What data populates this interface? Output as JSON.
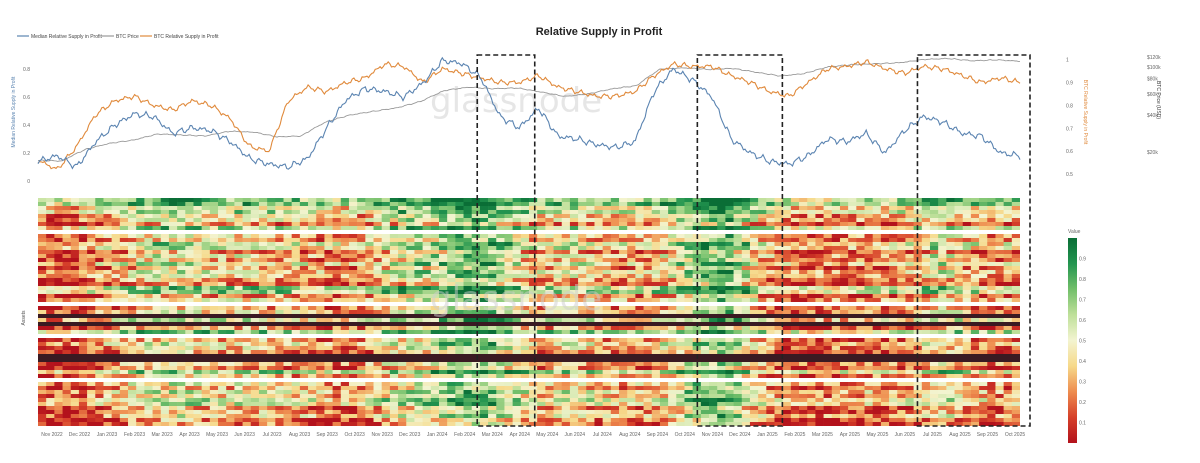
{
  "chart_data": {
    "type": "line",
    "title": "Relative Supply in Profit",
    "watermark": "glassnode",
    "legend": {
      "placement": "top-left",
      "items": [
        {
          "name": "Median Relative Supply in Profit",
          "color": "#5b84b1"
        },
        {
          "name": "BTC Price",
          "color": "#9a9a9a"
        },
        {
          "name": "BTC Relative Supply in Profit",
          "color": "#e08a3c"
        }
      ]
    },
    "x_ticks": [
      "Nov 2022",
      "Dec 2022",
      "Jan 2023",
      "Feb 2023",
      "Mar 2023",
      "Apr 2023",
      "May 2023",
      "Jun 2023",
      "Jul 2023",
      "Aug 2023",
      "Sep 2023",
      "Oct 2023",
      "Nov 2023",
      "Dec 2023",
      "Jan 2024",
      "Feb 2024",
      "Mar 2024",
      "Apr 2024",
      "May 2024",
      "Jun 2024",
      "Jul 2024",
      "Aug 2024",
      "Sep 2024",
      "Oct 2024",
      "Nov 2024",
      "Dec 2024",
      "Jan 2025",
      "Feb 2025",
      "Mar 2025",
      "Apr 2025",
      "May 2025",
      "Jun 2025",
      "Jul 2025",
      "Aug 2025",
      "Sep 2025",
      "Oct 2025"
    ],
    "y_left": {
      "label": "Median Relative Supply in Profit",
      "ticks": [
        "0",
        "0.2",
        "0.4",
        "0.6",
        "0.8"
      ],
      "range": [
        0,
        0.9
      ],
      "color": "#5b84b1"
    },
    "y_right": {
      "label": "BTC Relative Supply in Profit",
      "ticks": [
        "0.5",
        "0.6",
        "0.7",
        "0.8",
        "0.9",
        "1"
      ],
      "range": [
        0.47,
        1.02
      ],
      "color": "#e08a3c"
    },
    "y_price": {
      "label": "BTC Price (USD)",
      "ticks": [
        "$120k",
        "$100k",
        "$80k",
        "$60k",
        "$40k",
        "$20k"
      ],
      "values": [
        120000,
        100000,
        80000,
        60000,
        40000,
        20000
      ],
      "color": "#222222"
    },
    "series": [
      {
        "name": "Median Relative Supply in Profit",
        "color": "#5b84b1",
        "values": [
          0.14,
          0.18,
          0.1,
          0.28,
          0.4,
          0.48,
          0.46,
          0.34,
          0.38,
          0.36,
          0.28,
          0.16,
          0.12,
          0.1,
          0.16,
          0.38,
          0.58,
          0.66,
          0.64,
          0.6,
          0.7,
          0.86,
          0.84,
          0.74,
          0.46,
          0.38,
          0.52,
          0.32,
          0.3,
          0.26,
          0.24,
          0.28,
          0.64,
          0.8,
          0.72,
          0.6,
          0.3,
          0.2,
          0.14,
          0.12,
          0.18,
          0.3,
          0.28,
          0.34,
          0.2,
          0.36,
          0.46,
          0.42,
          0.34,
          0.32,
          0.2,
          0.18
        ]
      },
      {
        "name": "BTC Relative Supply in Profit",
        "color": "#e08a3c",
        "values": [
          0.56,
          0.52,
          0.62,
          0.76,
          0.82,
          0.84,
          0.8,
          0.78,
          0.82,
          0.8,
          0.74,
          0.62,
          0.6,
          0.82,
          0.88,
          0.86,
          0.9,
          0.92,
          0.98,
          0.97,
          0.9,
          0.96,
          0.94,
          0.92,
          0.9,
          0.9,
          0.93,
          0.88,
          0.86,
          0.84,
          0.84,
          0.86,
          0.93,
          0.98,
          0.97,
          0.97,
          0.93,
          0.9,
          0.86,
          0.84,
          0.9,
          0.96,
          0.97,
          0.99,
          0.96,
          0.94,
          0.97,
          0.96,
          0.93,
          0.9,
          0.92,
          0.9
        ]
      },
      {
        "name": "BTC Price",
        "color": "#9a9a9a",
        "values": [
          17000,
          16800,
          21000,
          23500,
          25000,
          28000,
          27500,
          27000,
          29500,
          29000,
          26500,
          27000,
          35000,
          40000,
          43000,
          46000,
          52000,
          64000,
          68000,
          66000,
          67000,
          62000,
          57000,
          60000,
          66000,
          70000,
          96000,
          98000,
          95000,
          97000,
          90000,
          84000,
          88000,
          100000,
          104000,
          106000,
          108000,
          115000,
          117000,
          112000,
          114000,
          111000
        ]
      }
    ],
    "heatmap": {
      "type": "heatmap",
      "y_label": "Assets",
      "colorbar": {
        "title": "Value",
        "ticks": [
          "0.9",
          "0.8",
          "0.7",
          "0.6",
          "0.5",
          "0.4",
          "0.3",
          "0.2",
          "0.1"
        ],
        "stops": [
          "#b3121c",
          "#d6402a",
          "#ee8c4f",
          "#f6d98a",
          "#f3f4d0",
          "#bfe09a",
          "#72bf6a",
          "#239550",
          "#0a6e36"
        ]
      },
      "column_means": [
        0.22,
        0.2,
        0.3,
        0.4,
        0.52,
        0.56,
        0.5,
        0.45,
        0.48,
        0.44,
        0.38,
        0.3,
        0.3,
        0.5,
        0.6,
        0.64,
        0.78,
        0.76,
        0.56,
        0.42,
        0.5,
        0.42,
        0.36,
        0.4,
        0.52,
        0.72,
        0.82,
        0.5,
        0.3,
        0.22,
        0.26,
        0.3,
        0.32,
        0.36,
        0.56,
        0.44,
        0.3,
        0.34
      ]
    },
    "highlight_periods": [
      {
        "from": "Mar 2024",
        "to": "Apr 2024"
      },
      {
        "from": "Nov 2024",
        "to": "Jan 2025"
      },
      {
        "from": "Jul 2025",
        "to": "Oct 2025"
      }
    ]
  }
}
